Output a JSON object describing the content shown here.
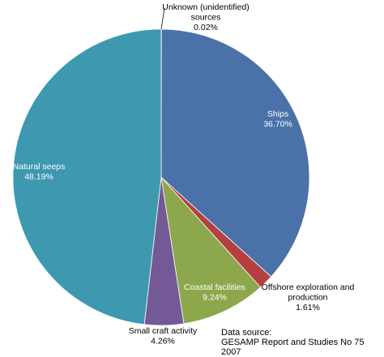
{
  "chart_data": {
    "type": "pie",
    "slices": [
      {
        "name": "Unknown (unidentified) sources",
        "label_lines": [
          "Unknown (unidentified)",
          "sources"
        ],
        "value": 0.02,
        "value_label": "0.02%",
        "color": "#4a7db8",
        "label_style": "outside"
      },
      {
        "name": "Ships",
        "label_lines": [
          "Ships"
        ],
        "value": 36.7,
        "value_label": "36.70%",
        "color": "#4a72a8",
        "label_style": "inside"
      },
      {
        "name": "Offshore exploration and production",
        "label_lines": [
          "Offshore exploration and",
          "production"
        ],
        "value": 1.61,
        "value_label": "1.61%",
        "color": "#b5403d",
        "label_style": "outside"
      },
      {
        "name": "Coastal facilities",
        "label_lines": [
          "Coastal facilities"
        ],
        "value": 9.24,
        "value_label": "9.24%",
        "color": "#8da84c",
        "label_style": "inside"
      },
      {
        "name": "Small craft activity",
        "label_lines": [
          "Small craft activity"
        ],
        "value": 4.26,
        "value_label": "4.26%",
        "color": "#735a96",
        "label_style": "outside"
      },
      {
        "name": "Natural seeps",
        "label_lines": [
          "Natural seeps"
        ],
        "value": 48.19,
        "value_label": "48.19%",
        "color": "#3e98b0",
        "label_style": "inside"
      }
    ]
  },
  "source": {
    "line1": "Data source:",
    "line2": "GESAMP Report and Studies No 75 2007"
  }
}
